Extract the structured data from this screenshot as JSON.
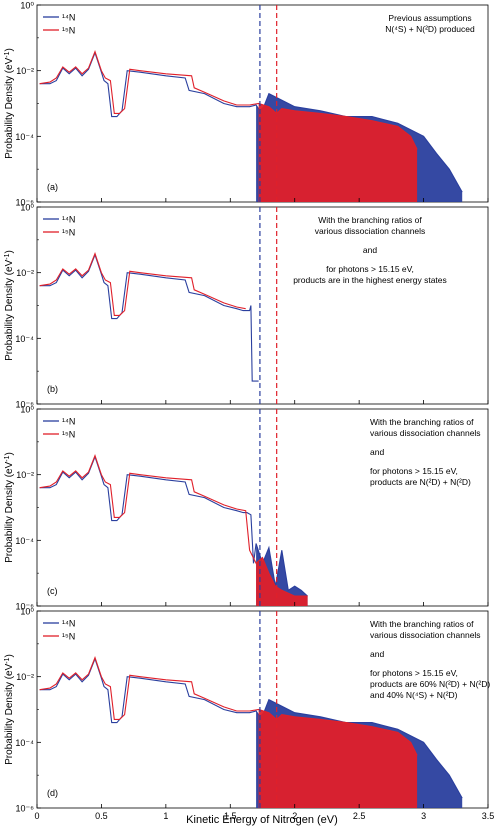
{
  "figure": {
    "xlabel": "Kinetic Energy of Nitrogen (eV)",
    "ylabel_main": "Probability Density (eV",
    "ylabel_sup": "-1",
    "ylabel_close": ")"
  },
  "colors": {
    "n14": "#2a3f9e",
    "n15": "#e0202a"
  },
  "chart_data": [
    {
      "type": "line",
      "panel_label": "(a)",
      "annotation": [
        "Previous assumptions",
        "N(⁴S) + N(²D) produced"
      ],
      "legend": [
        "¹⁴N",
        "¹⁵N"
      ],
      "legend_position": "top-left",
      "xlim": [
        0,
        3.5
      ],
      "ylim": [
        1e-06,
        1
      ],
      "yscale": "log",
      "xticks": [
        "0",
        "0.5",
        "1",
        "1.5",
        "2",
        "2.5",
        "3",
        "3.5"
      ],
      "yticks": [
        "10⁰",
        "10⁻²",
        "10⁻⁴",
        "10⁻⁶"
      ],
      "vlines": [
        1.73,
        1.86
      ],
      "series": [
        {
          "name": "¹⁴N",
          "color": "#2a3f9e",
          "x": [
            0.02,
            0.1,
            0.15,
            0.2,
            0.25,
            0.3,
            0.35,
            0.4,
            0.45,
            0.5,
            0.52,
            0.55,
            0.58,
            0.62,
            0.66,
            0.7,
            0.8,
            1.0,
            1.15,
            1.18,
            1.3,
            1.45,
            1.55,
            1.65,
            1.7,
            1.73,
            1.76,
            1.8,
            2.0,
            2.2,
            2.4,
            2.6,
            2.8,
            3.0,
            3.1,
            3.2,
            3.3
          ],
          "y": [
            0.004,
            0.004,
            0.005,
            0.012,
            0.008,
            0.012,
            0.007,
            0.011,
            0.035,
            0.009,
            0.005,
            0.004,
            0.0004,
            0.0004,
            0.0006,
            0.01,
            0.009,
            0.007,
            0.006,
            0.0025,
            0.002,
            0.001,
            0.0008,
            0.0008,
            0.0009,
            0.0006,
            0.0008,
            0.002,
            0.0008,
            0.0006,
            0.0004,
            0.0004,
            0.00025,
            0.0001,
            3e-05,
            1e-05,
            2e-06
          ]
        },
        {
          "name": "¹⁵N",
          "color": "#e0202a",
          "x": [
            0.02,
            0.1,
            0.15,
            0.2,
            0.25,
            0.3,
            0.35,
            0.4,
            0.45,
            0.5,
            0.53,
            0.57,
            0.6,
            0.64,
            0.68,
            0.72,
            0.8,
            1.0,
            1.2,
            1.22,
            1.3,
            1.45,
            1.55,
            1.65,
            1.72,
            1.8,
            1.86,
            1.9,
            2.0,
            2.2,
            2.4,
            2.6,
            2.8,
            2.9,
            2.95
          ],
          "y": [
            0.004,
            0.0045,
            0.006,
            0.013,
            0.009,
            0.013,
            0.008,
            0.012,
            0.038,
            0.01,
            0.006,
            0.005,
            0.0005,
            0.0005,
            0.0007,
            0.011,
            0.01,
            0.008,
            0.007,
            0.003,
            0.0022,
            0.0012,
            0.0009,
            0.0009,
            0.001,
            0.0008,
            0.0005,
            0.0007,
            0.0006,
            0.0005,
            0.0004,
            0.0003,
            0.0002,
            0.0001,
            4e-05
          ]
        }
      ]
    },
    {
      "type": "line",
      "panel_label": "(b)",
      "annotation": [
        "With the branching ratios of",
        "various dissociation channels",
        "and",
        "for photons > 15.15 eV,",
        "products are in the highest energy states"
      ],
      "legend": [
        "¹⁴N",
        "¹⁵N"
      ],
      "legend_position": "top-left",
      "xlim": [
        0,
        3.5
      ],
      "ylim": [
        1e-06,
        1
      ],
      "yscale": "log",
      "xticks": [
        "0",
        "0.5",
        "1",
        "1.5",
        "2",
        "2.5",
        "3",
        "3.5"
      ],
      "yticks": [
        "10⁰",
        "10⁻²",
        "10⁻⁴",
        "10⁻⁶"
      ],
      "vlines": [
        1.73,
        1.86
      ],
      "series": [
        {
          "name": "¹⁴N",
          "color": "#2a3f9e",
          "x": [
            0.02,
            0.1,
            0.15,
            0.2,
            0.25,
            0.3,
            0.35,
            0.4,
            0.45,
            0.5,
            0.52,
            0.55,
            0.58,
            0.62,
            0.66,
            0.7,
            0.8,
            1.0,
            1.15,
            1.18,
            1.3,
            1.45,
            1.55,
            1.6,
            1.63,
            1.65,
            1.66,
            1.67,
            1.72
          ],
          "y": [
            0.004,
            0.004,
            0.005,
            0.012,
            0.008,
            0.012,
            0.007,
            0.011,
            0.035,
            0.009,
            0.005,
            0.004,
            0.0004,
            0.0004,
            0.0006,
            0.01,
            0.009,
            0.007,
            0.006,
            0.0025,
            0.002,
            0.001,
            0.0008,
            0.0007,
            0.0007,
            0.0007,
            0.001,
            5e-06,
            5e-06
          ]
        },
        {
          "name": "¹⁵N",
          "color": "#e0202a",
          "x": [
            0.02,
            0.1,
            0.15,
            0.2,
            0.25,
            0.3,
            0.35,
            0.4,
            0.45,
            0.5,
            0.53,
            0.57,
            0.6,
            0.64,
            0.68,
            0.72,
            0.8,
            1.0,
            1.2,
            1.22,
            1.3,
            1.45,
            1.55,
            1.62
          ],
          "y": [
            0.004,
            0.0045,
            0.006,
            0.013,
            0.009,
            0.013,
            0.008,
            0.012,
            0.038,
            0.01,
            0.006,
            0.005,
            0.0005,
            0.0005,
            0.0007,
            0.011,
            0.01,
            0.008,
            0.007,
            0.003,
            0.0022,
            0.0012,
            0.0009,
            0.0008
          ]
        }
      ]
    },
    {
      "type": "line",
      "panel_label": "(c)",
      "annotation": [
        "With the branching ratios of",
        "various dissociation channels",
        "and",
        "for photons > 15.15 eV,",
        "products are N(²D) + N(²D)"
      ],
      "legend": [
        "¹⁴N",
        "¹⁵N"
      ],
      "legend_position": "top-left",
      "xlim": [
        0,
        3.5
      ],
      "ylim": [
        1e-06,
        1
      ],
      "yscale": "log",
      "xticks": [
        "0",
        "0.5",
        "1",
        "1.5",
        "2",
        "2.5",
        "3",
        "3.5"
      ],
      "yticks": [
        "10⁰",
        "10⁻²",
        "10⁻⁴",
        "10⁻⁶"
      ],
      "vlines": [
        1.73,
        1.86
      ],
      "series": [
        {
          "name": "¹⁴N",
          "color": "#2a3f9e",
          "x": [
            0.02,
            0.1,
            0.15,
            0.2,
            0.25,
            0.3,
            0.35,
            0.4,
            0.45,
            0.5,
            0.52,
            0.55,
            0.58,
            0.62,
            0.66,
            0.7,
            0.8,
            1.0,
            1.15,
            1.18,
            1.3,
            1.45,
            1.55,
            1.6,
            1.63,
            1.66,
            1.68,
            1.7,
            1.75,
            1.8,
            1.85,
            1.9,
            1.95,
            2.0,
            2.05,
            2.1
          ],
          "y": [
            0.004,
            0.004,
            0.005,
            0.012,
            0.008,
            0.012,
            0.007,
            0.011,
            0.035,
            0.009,
            0.005,
            0.004,
            0.0004,
            0.0004,
            0.0006,
            0.01,
            0.009,
            0.007,
            0.006,
            0.0025,
            0.002,
            0.001,
            0.0008,
            0.0007,
            0.0007,
            0.0006,
            2e-05,
            8e-05,
            2e-05,
            6e-05,
            4e-06,
            5e-05,
            3e-06,
            4e-06,
            3e-06,
            2e-06
          ]
        },
        {
          "name": "¹⁵N",
          "color": "#e0202a",
          "x": [
            0.02,
            0.1,
            0.15,
            0.2,
            0.25,
            0.3,
            0.35,
            0.4,
            0.45,
            0.5,
            0.53,
            0.57,
            0.6,
            0.64,
            0.68,
            0.72,
            0.8,
            1.0,
            1.2,
            1.22,
            1.3,
            1.45,
            1.55,
            1.62,
            1.65,
            1.7,
            1.75,
            1.8,
            1.85,
            1.9,
            2.0,
            2.1
          ],
          "y": [
            0.004,
            0.0045,
            0.006,
            0.013,
            0.009,
            0.013,
            0.008,
            0.012,
            0.038,
            0.01,
            0.006,
            0.005,
            0.0005,
            0.0005,
            0.0007,
            0.011,
            0.01,
            0.008,
            0.007,
            0.003,
            0.0022,
            0.0012,
            0.0009,
            0.0008,
            5e-05,
            2e-05,
            3e-05,
            1e-05,
            4e-06,
            3e-06,
            2e-06,
            2e-06
          ]
        }
      ]
    },
    {
      "type": "line",
      "panel_label": "(d)",
      "annotation": [
        "With the branching ratios of",
        "various dissociation channels",
        "and",
        "for photons > 15.15 eV,",
        "products are 60% N(²D) + N(²D)",
        "and 40% N(⁴S) + N(²D)"
      ],
      "legend": [
        "¹⁴N",
        "¹⁵N"
      ],
      "legend_position": "top-left",
      "xlim": [
        0,
        3.5
      ],
      "ylim": [
        1e-06,
        1
      ],
      "yscale": "log",
      "xticks": [
        "0",
        "0.5",
        "1",
        "1.5",
        "2",
        "2.5",
        "3",
        "3.5"
      ],
      "yticks": [
        "10⁰",
        "10⁻²",
        "10⁻⁴",
        "10⁻⁶"
      ],
      "vlines": [
        1.73,
        1.86
      ],
      "series": [
        {
          "name": "¹⁴N",
          "color": "#2a3f9e",
          "x": [
            0.02,
            0.1,
            0.15,
            0.2,
            0.25,
            0.3,
            0.35,
            0.4,
            0.45,
            0.5,
            0.52,
            0.55,
            0.58,
            0.62,
            0.66,
            0.7,
            0.8,
            1.0,
            1.15,
            1.18,
            1.3,
            1.45,
            1.55,
            1.65,
            1.7,
            1.73,
            1.76,
            1.8,
            2.0,
            2.2,
            2.4,
            2.6,
            2.8,
            3.0,
            3.1,
            3.2,
            3.3
          ],
          "y": [
            0.004,
            0.004,
            0.005,
            0.012,
            0.008,
            0.012,
            0.007,
            0.011,
            0.035,
            0.009,
            0.005,
            0.004,
            0.0004,
            0.0004,
            0.0006,
            0.01,
            0.009,
            0.007,
            0.006,
            0.0025,
            0.002,
            0.001,
            0.0008,
            0.0008,
            0.0009,
            0.0006,
            0.0008,
            0.002,
            0.0008,
            0.0006,
            0.0004,
            0.0004,
            0.00025,
            0.0001,
            3e-05,
            1e-05,
            2e-06
          ]
        },
        {
          "name": "¹⁵N",
          "color": "#e0202a",
          "x": [
            0.02,
            0.1,
            0.15,
            0.2,
            0.25,
            0.3,
            0.35,
            0.4,
            0.45,
            0.5,
            0.53,
            0.57,
            0.6,
            0.64,
            0.68,
            0.72,
            0.8,
            1.0,
            1.2,
            1.22,
            1.3,
            1.45,
            1.55,
            1.65,
            1.72,
            1.8,
            1.86,
            1.9,
            2.0,
            2.2,
            2.4,
            2.6,
            2.8,
            2.9,
            2.95
          ],
          "y": [
            0.004,
            0.0045,
            0.006,
            0.013,
            0.009,
            0.013,
            0.008,
            0.012,
            0.038,
            0.01,
            0.006,
            0.005,
            0.0005,
            0.0005,
            0.0007,
            0.011,
            0.01,
            0.008,
            0.007,
            0.003,
            0.0022,
            0.0012,
            0.0009,
            0.0009,
            0.001,
            0.0008,
            0.0005,
            0.0007,
            0.0006,
            0.0005,
            0.0004,
            0.0003,
            0.0002,
            0.0001,
            4e-05
          ]
        }
      ]
    }
  ]
}
